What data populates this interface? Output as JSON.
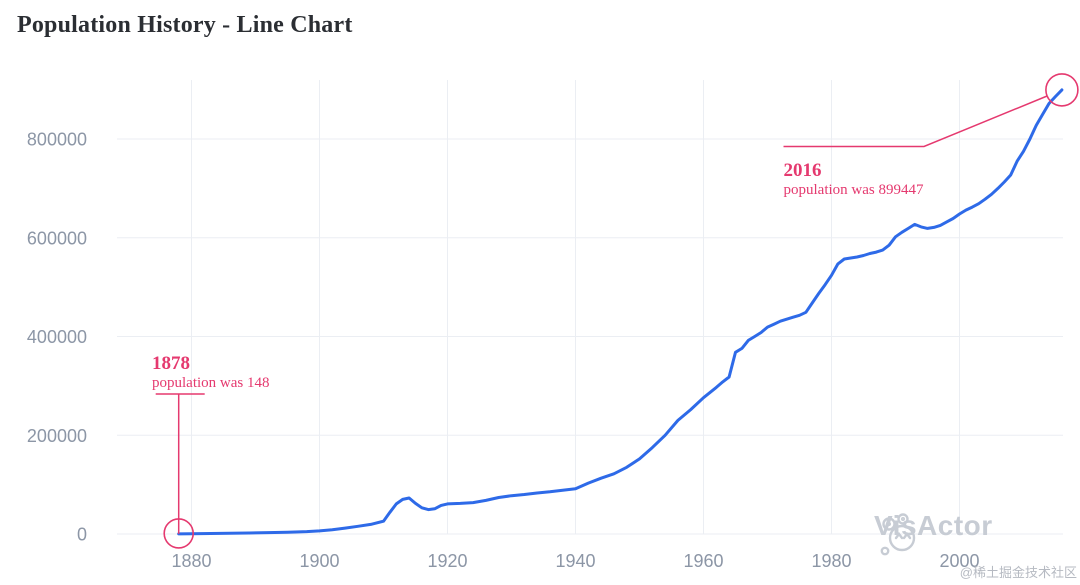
{
  "title": "Population History - Line Chart",
  "watermark": {
    "brand": "VisActor",
    "logo_icon": "visactor-cat-logo",
    "credit": "@稀土掘金技术社区"
  },
  "colors": {
    "line": "#2E6AE8",
    "annotation": "#E5396F",
    "grid": "#EBEEF3",
    "axis_label": "#8C96A6",
    "title": "#2B2E33",
    "watermark": "#C7CCD4",
    "credit": "#B6BAC2",
    "background": "#FFFFFF"
  },
  "chart_data": {
    "type": "line",
    "title": "Population History - Line Chart",
    "xlabel": "",
    "ylabel": "",
    "grid": true,
    "legend_position": "none",
    "x_axis": {
      "range": [
        1878,
        2016
      ],
      "ticks": [
        1880,
        1900,
        1920,
        1940,
        1960,
        1980,
        2000
      ]
    },
    "y_axis": {
      "range": [
        0,
        911000
      ],
      "ticks": [
        0,
        200000,
        400000,
        600000,
        800000
      ]
    },
    "series": [
      {
        "name": "population",
        "points": [
          [
            1878,
            148
          ],
          [
            1880,
            600
          ],
          [
            1883,
            1000
          ],
          [
            1886,
            1500
          ],
          [
            1889,
            2100
          ],
          [
            1892,
            2800
          ],
          [
            1895,
            3600
          ],
          [
            1898,
            4800
          ],
          [
            1900,
            6200
          ],
          [
            1902,
            8800
          ],
          [
            1904,
            12000
          ],
          [
            1906,
            15500
          ],
          [
            1908,
            19500
          ],
          [
            1910,
            26000
          ],
          [
            1911,
            44000
          ],
          [
            1912,
            61000
          ],
          [
            1913,
            70000
          ],
          [
            1914,
            73000
          ],
          [
            1915,
            62000
          ],
          [
            1916,
            53000
          ],
          [
            1917,
            49500
          ],
          [
            1918,
            51000
          ],
          [
            1919,
            58000
          ],
          [
            1920,
            61000
          ],
          [
            1922,
            62000
          ],
          [
            1924,
            63500
          ],
          [
            1926,
            68000
          ],
          [
            1928,
            74000
          ],
          [
            1930,
            77500
          ],
          [
            1932,
            80000
          ],
          [
            1934,
            83000
          ],
          [
            1936,
            85500
          ],
          [
            1938,
            88500
          ],
          [
            1940,
            91500
          ],
          [
            1942,
            103000
          ],
          [
            1944,
            113000
          ],
          [
            1946,
            122000
          ],
          [
            1948,
            135000
          ],
          [
            1950,
            152000
          ],
          [
            1952,
            175000
          ],
          [
            1954,
            200000
          ],
          [
            1956,
            230000
          ],
          [
            1958,
            252000
          ],
          [
            1960,
            276000
          ],
          [
            1962,
            297000
          ],
          [
            1963,
            308000
          ],
          [
            1964,
            318000
          ],
          [
            1965,
            368000
          ],
          [
            1966,
            376000
          ],
          [
            1967,
            392000
          ],
          [
            1968,
            400000
          ],
          [
            1969,
            408000
          ],
          [
            1970,
            419000
          ],
          [
            1971,
            425000
          ],
          [
            1972,
            431000
          ],
          [
            1973,
            435000
          ],
          [
            1974,
            439000
          ],
          [
            1975,
            443000
          ],
          [
            1976,
            449000
          ],
          [
            1977,
            468000
          ],
          [
            1978,
            487000
          ],
          [
            1979,
            505000
          ],
          [
            1980,
            524000
          ],
          [
            1981,
            547000
          ],
          [
            1982,
            557000
          ],
          [
            1983,
            559000
          ],
          [
            1984,
            561000
          ],
          [
            1985,
            564000
          ],
          [
            1986,
            568000
          ],
          [
            1987,
            571000
          ],
          [
            1988,
            575000
          ],
          [
            1989,
            585000
          ],
          [
            1990,
            602000
          ],
          [
            1991,
            611000
          ],
          [
            1992,
            619000
          ],
          [
            1993,
            627000
          ],
          [
            1994,
            622000
          ],
          [
            1995,
            619000
          ],
          [
            1996,
            621000
          ],
          [
            1997,
            625000
          ],
          [
            1998,
            632000
          ],
          [
            1999,
            639000
          ],
          [
            2000,
            648000
          ],
          [
            2001,
            656000
          ],
          [
            2002,
            662000
          ],
          [
            2003,
            669000
          ],
          [
            2004,
            678000
          ],
          [
            2005,
            688000
          ],
          [
            2006,
            700000
          ],
          [
            2007,
            713000
          ],
          [
            2008,
            727000
          ],
          [
            2009,
            755000
          ],
          [
            2010,
            775000
          ],
          [
            2011,
            800000
          ],
          [
            2012,
            828000
          ],
          [
            2013,
            850000
          ],
          [
            2014,
            872000
          ],
          [
            2015,
            886000
          ],
          [
            2016,
            899447
          ]
        ]
      }
    ],
    "annotations": [
      {
        "year": 1878,
        "value": 148,
        "title": "1878",
        "label": "population was 148"
      },
      {
        "year": 2016,
        "value": 899447,
        "title": "2016",
        "label": "population was 899447"
      }
    ]
  }
}
